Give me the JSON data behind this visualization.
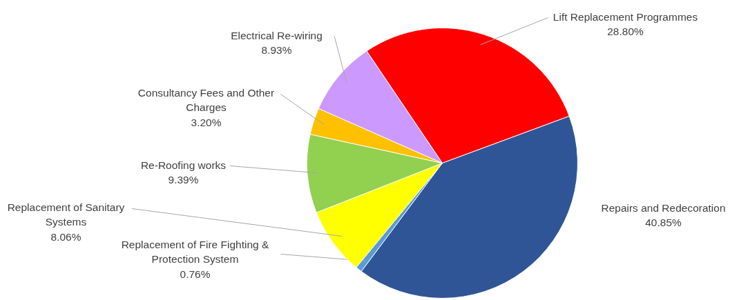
{
  "chart_data": {
    "type": "pie",
    "categories": [
      "Lift Replacement Programmes",
      "Repairs and Redecoration",
      "Replacement of Fire Fighting & Protection System",
      "Replacement of Sanitary Systems",
      "Re-Roofing works",
      "Consultancy Fees and Other Charges",
      "Electrical Re-wiring"
    ],
    "values": [
      28.8,
      40.85,
      0.76,
      8.06,
      9.39,
      3.2,
      8.93
    ],
    "colors": [
      "#ff0000",
      "#2f5597",
      "#5b9bd5",
      "#ffff00",
      "#92d050",
      "#ffc000",
      "#cc99ff"
    ],
    "value_labels": [
      "28.80%",
      "40.85%",
      "0.76%",
      "8.06%",
      "9.39%",
      "3.20%",
      "8.93%"
    ]
  }
}
